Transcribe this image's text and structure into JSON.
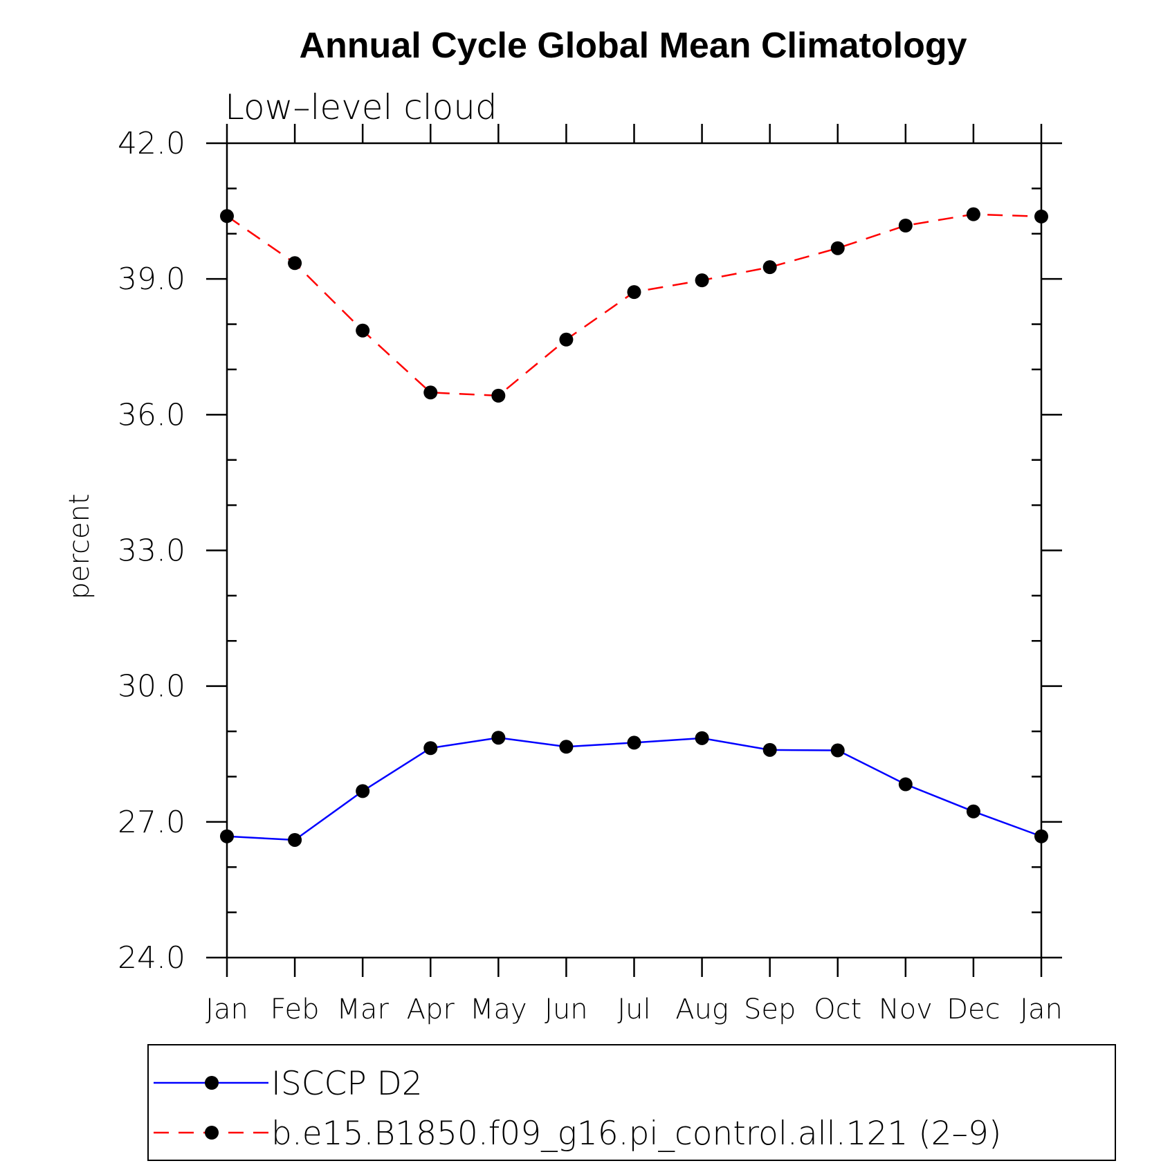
{
  "chart_data": {
    "type": "line",
    "title": "Annual Cycle Global Mean Climatology",
    "subtitle": "Low–level cloud",
    "xlabel": "",
    "ylabel": "percent",
    "categories": [
      "Jan",
      "Feb",
      "Mar",
      "Apr",
      "May",
      "Jun",
      "Jul",
      "Aug",
      "Sep",
      "Oct",
      "Nov",
      "Dec",
      "Jan"
    ],
    "ylim": [
      24.0,
      42.0
    ],
    "yticks": [
      "24.0",
      "27.0",
      "30.0",
      "33.0",
      "36.0",
      "39.0",
      "42.0"
    ],
    "ytick_values": [
      24,
      27,
      30,
      33,
      36,
      39,
      42
    ],
    "grid": false,
    "legend_position": "bottom",
    "series": [
      {
        "name": "ISCCP D2",
        "color": "#0000ff",
        "line_style": "solid",
        "marker": "filled-circle",
        "values": [
          26.68,
          26.6,
          27.68,
          28.63,
          28.86,
          28.66,
          28.75,
          28.85,
          28.59,
          28.58,
          27.83,
          27.23,
          26.68
        ]
      },
      {
        "name": "b.e15.B1850.f09_g16.pi_control.all.121 (2–9)",
        "color": "#ff0000",
        "line_style": "dashed",
        "marker": "filled-circle",
        "values": [
          40.39,
          39.35,
          37.86,
          36.49,
          36.42,
          37.66,
          38.71,
          38.97,
          39.26,
          39.68,
          40.18,
          40.43,
          40.38
        ]
      }
    ]
  }
}
